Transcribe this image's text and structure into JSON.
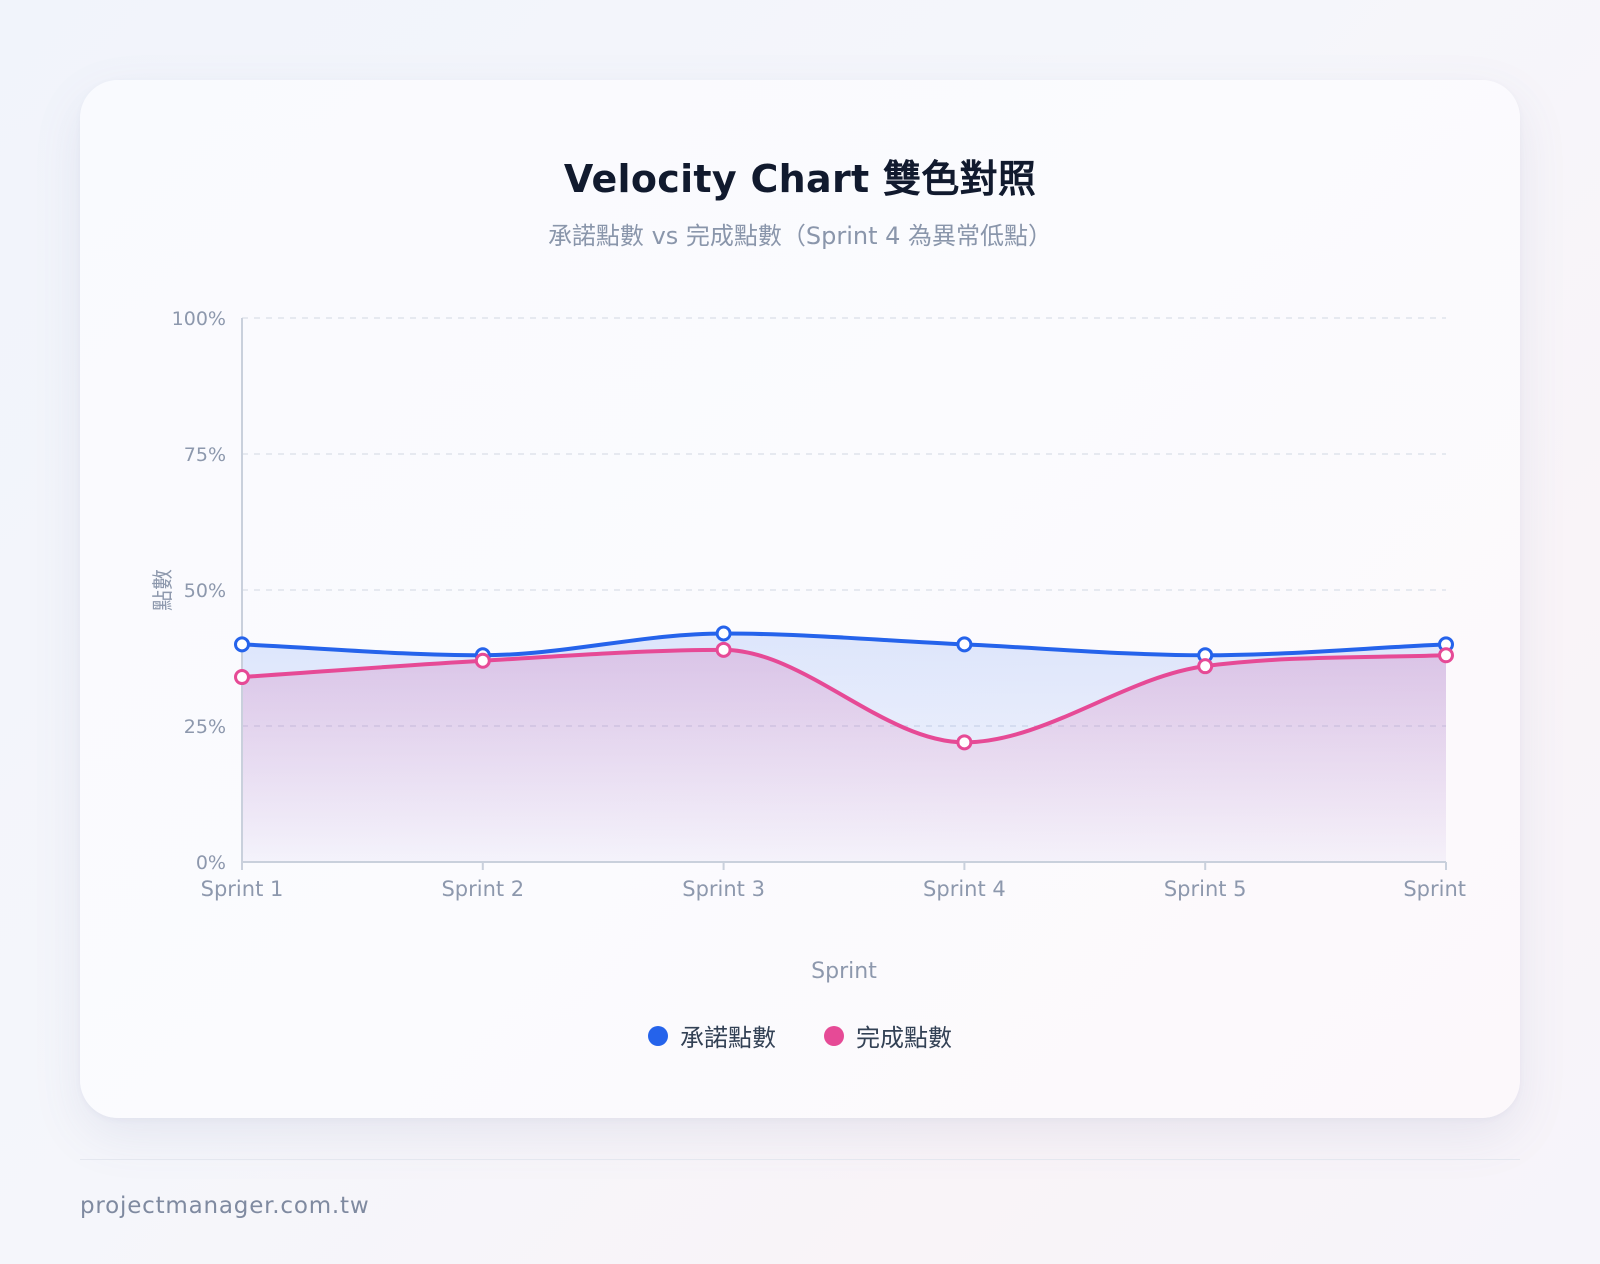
{
  "footer": {
    "site": "projectmanager.com.tw"
  },
  "colors": {
    "committed": "#2563eb",
    "completed": "#e64a96",
    "grid": "#dfe3ec",
    "axis": "#c9d0dc",
    "tick_text": "#8d98ad"
  },
  "chart_data": {
    "type": "area",
    "title": "Velocity Chart 雙色對照",
    "subtitle": "承諾點數 vs 完成點數（Sprint 4 為異常低點）",
    "xlabel": "Sprint",
    "ylabel": "點數",
    "categories": [
      "Sprint 1",
      "Sprint 2",
      "Sprint 3",
      "Sprint 4",
      "Sprint 5",
      "Sprint"
    ],
    "y_ticks": [
      "0%",
      "25%",
      "50%",
      "75%",
      "100%"
    ],
    "ylim": [
      0,
      100
    ],
    "grid": true,
    "legend_position": "bottom",
    "series": [
      {
        "name": "承諾點數",
        "color": "#2563eb",
        "values": [
          40,
          38,
          42,
          40,
          38,
          40
        ]
      },
      {
        "name": "完成點數",
        "color": "#e64a96",
        "values": [
          34,
          37,
          39,
          22,
          36,
          38
        ]
      }
    ]
  }
}
